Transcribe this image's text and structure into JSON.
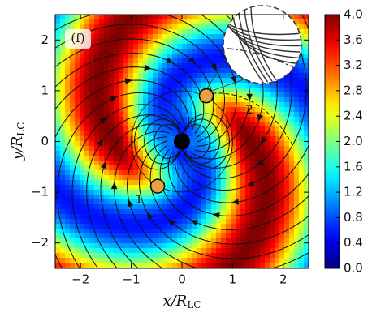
{
  "chart_data": {
    "type": "heatmap",
    "panel_label": "(f)",
    "xlabel": "x/R",
    "xlabel_sub": "LC",
    "ylabel": "y/R",
    "ylabel_sub": "LC",
    "xlim": [
      -2.5,
      2.5
    ],
    "ylim": [
      -2.5,
      2.5
    ],
    "xticks": [
      {
        "value": -2,
        "label": "−2"
      },
      {
        "value": -1,
        "label": "−1"
      },
      0,
      1,
      2
    ],
    "yticks": [
      {
        "value": -2,
        "label": "−2"
      },
      {
        "value": -1,
        "label": "−1"
      },
      0,
      1,
      2
    ],
    "colorbar": {
      "colormap": "jet",
      "lim": [
        0,
        4
      ],
      "ticks": [
        {
          "value": 0,
          "label": "0.0"
        },
        {
          "value": 0.4,
          "label": "0.4"
        },
        {
          "value": 0.8,
          "label": "0.8"
        },
        {
          "value": 1.2,
          "label": "1.2"
        },
        {
          "value": 1.6,
          "label": "1.6"
        },
        {
          "value": 2,
          "label": "2.0"
        },
        {
          "value": 2.4,
          "label": "2.4"
        },
        {
          "value": 2.8,
          "label": "2.8"
        },
        {
          "value": 3.2,
          "label": "3.2"
        },
        {
          "value": 3.6,
          "label": "3.6"
        },
        {
          "value": 4,
          "label": "4.0"
        }
      ]
    },
    "annotations": [
      "1",
      "2"
    ]
  }
}
